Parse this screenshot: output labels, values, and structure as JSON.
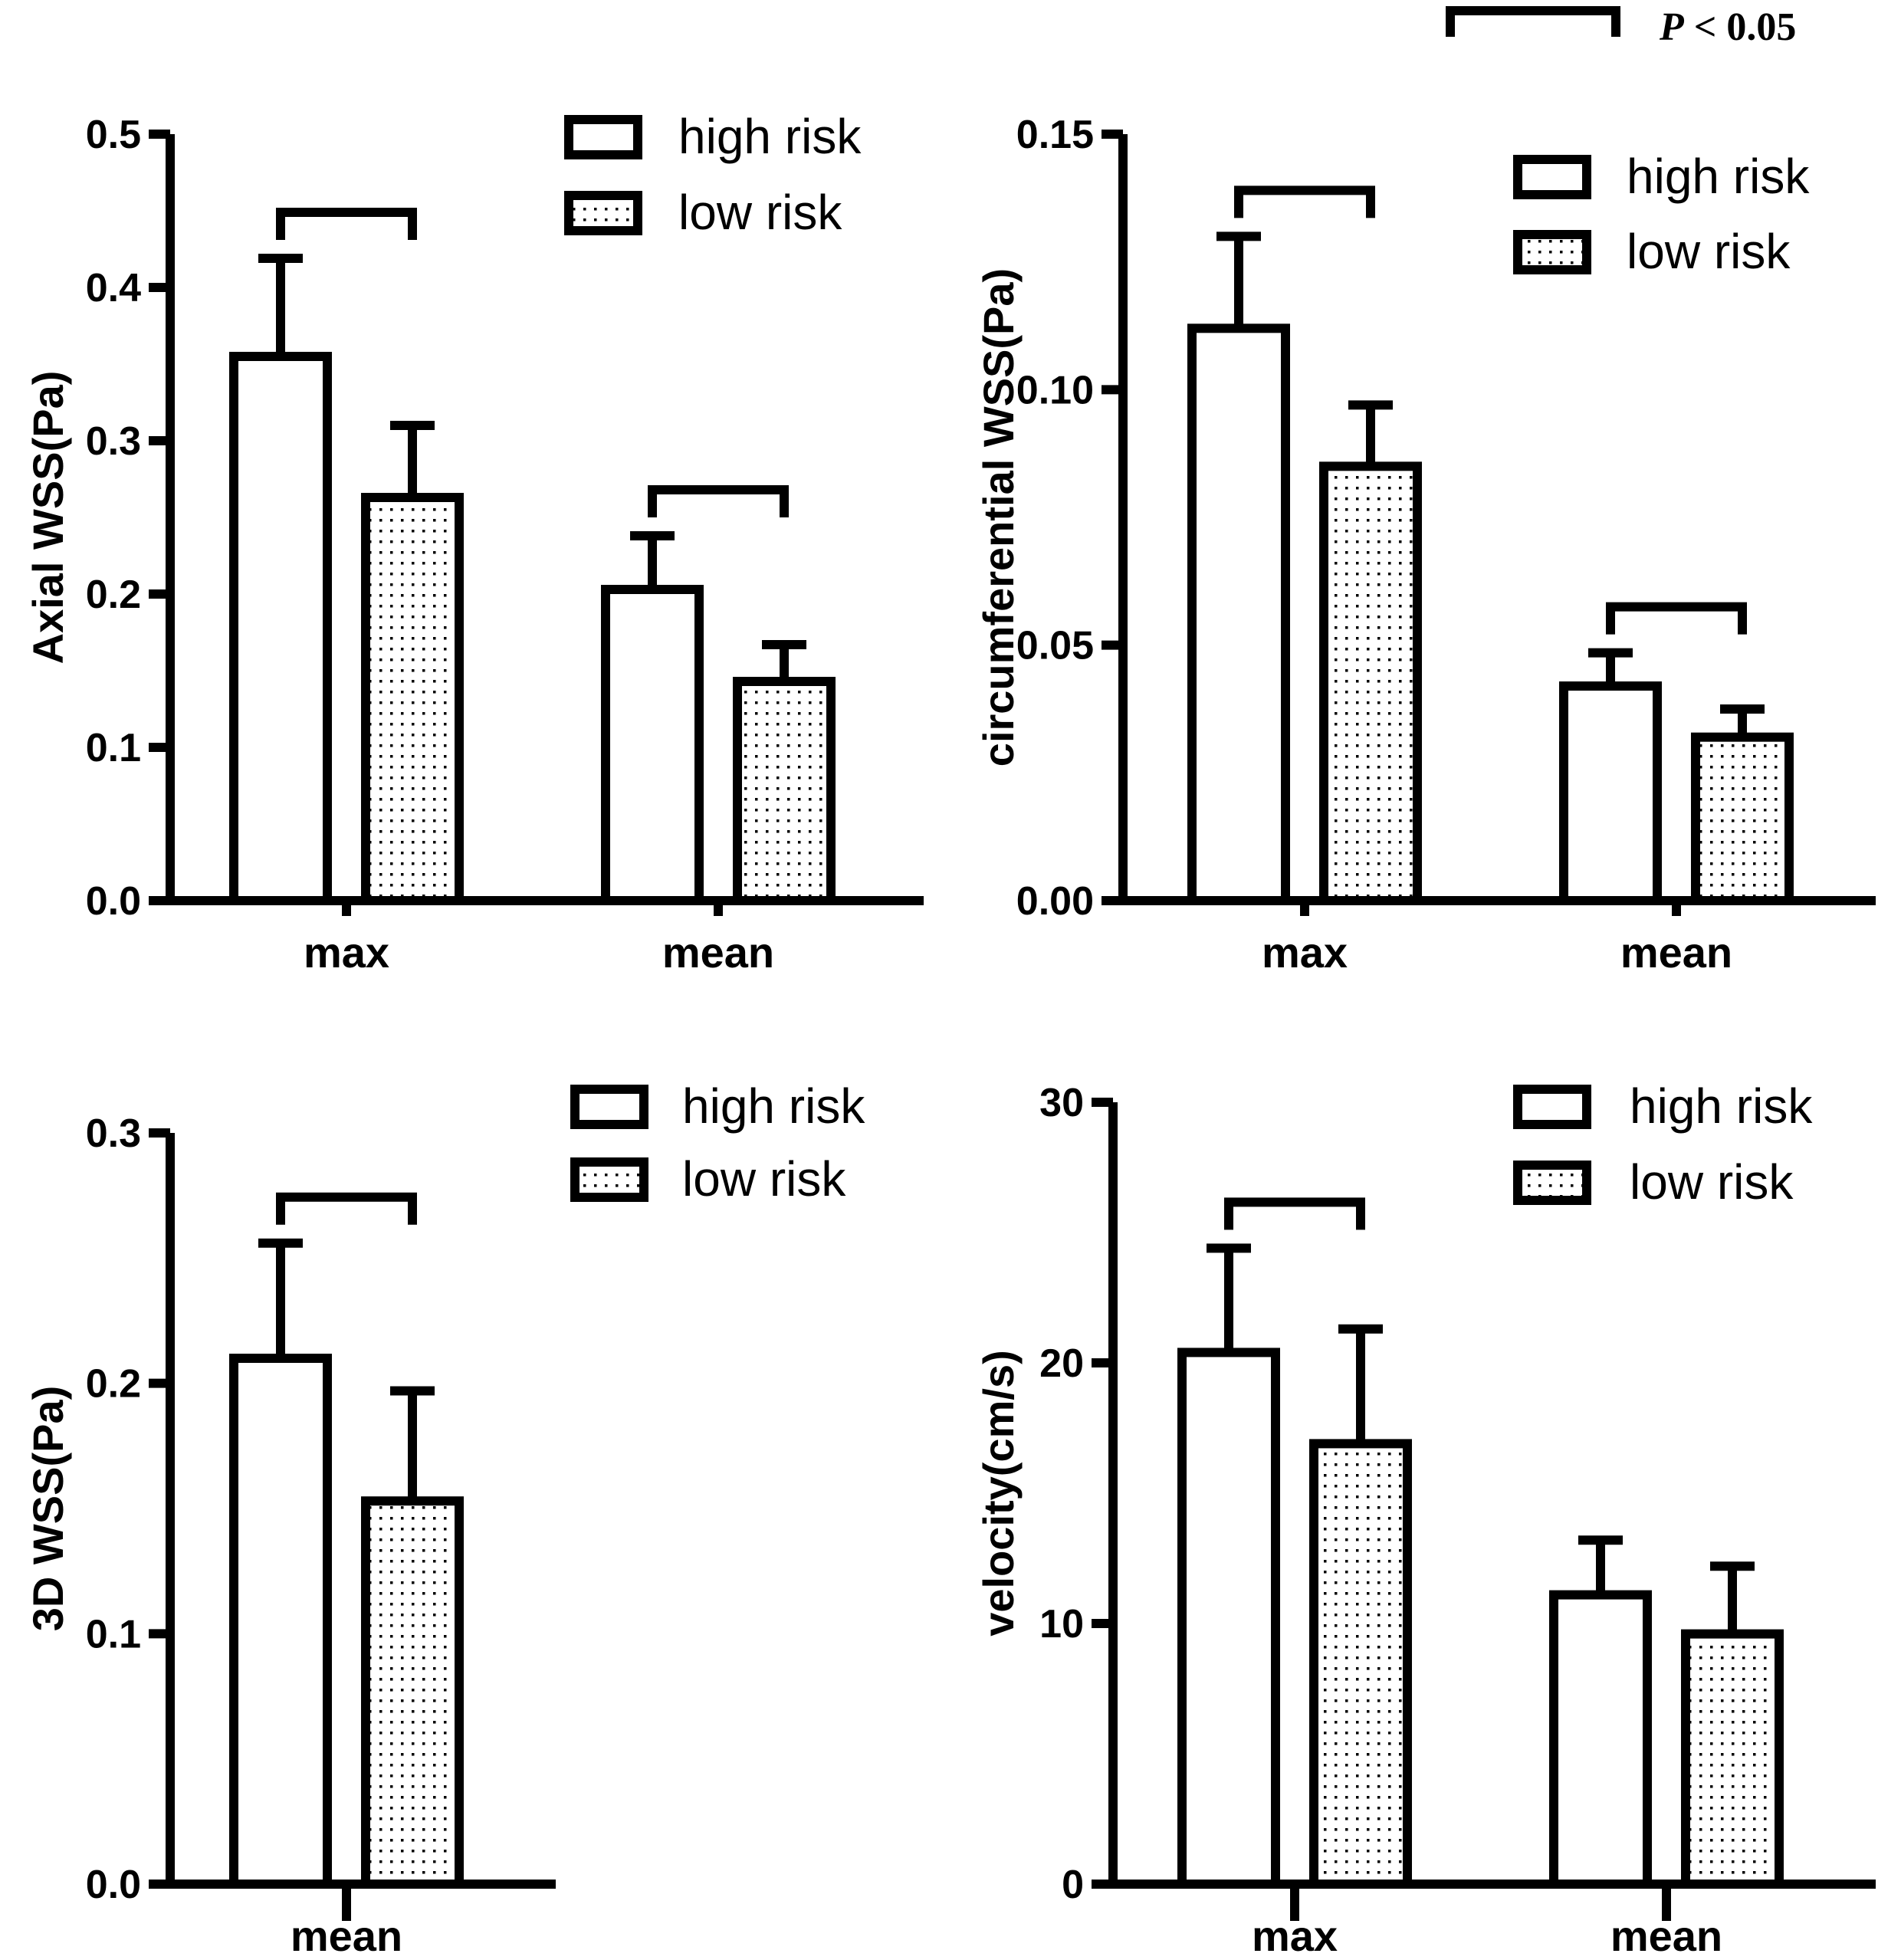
{
  "p_legend": {
    "p_italic": "P",
    "rest": " < 0.05"
  },
  "chart_data": [
    {
      "type": "bar",
      "title": "",
      "xlabel": "",
      "ylabel": "Axial WSS(Pa)",
      "ylim": [
        0,
        0.5
      ],
      "yticks": [
        "0.0",
        "0.1",
        "0.2",
        "0.3",
        "0.4",
        "0.5"
      ],
      "categories": [
        "max",
        "mean"
      ],
      "legend": [
        "high risk",
        "low risk"
      ],
      "legend_position": "top-right",
      "series": [
        {
          "name": "high risk",
          "values": [
            0.355,
            0.203
          ],
          "errors": [
            0.064,
            0.035
          ]
        },
        {
          "name": "low risk",
          "values": [
            0.263,
            0.143
          ],
          "errors": [
            0.047,
            0.024
          ]
        }
      ],
      "significance": [
        "max",
        "mean"
      ]
    },
    {
      "type": "bar",
      "title": "",
      "xlabel": "",
      "ylabel": "circumferential WSS(Pa)",
      "ylim": [
        0,
        0.15
      ],
      "yticks": [
        "0.00",
        "0.05",
        "0.10",
        "0.15"
      ],
      "categories": [
        "max",
        "mean"
      ],
      "legend": [
        "high risk",
        "low risk"
      ],
      "legend_position": "top-right",
      "series": [
        {
          "name": "high risk",
          "values": [
            0.112,
            0.042
          ],
          "errors": [
            0.018,
            0.0065
          ]
        },
        {
          "name": "low risk",
          "values": [
            0.085,
            0.032
          ],
          "errors": [
            0.012,
            0.0055
          ]
        }
      ],
      "significance": [
        "max",
        "mean"
      ]
    },
    {
      "type": "bar",
      "title": "",
      "xlabel": "",
      "ylabel": "3D WSS(Pa)",
      "ylim": [
        0,
        0.3
      ],
      "yticks": [
        "0.0",
        "0.1",
        "0.2",
        "0.3"
      ],
      "categories": [
        "mean"
      ],
      "legend": [
        "high risk",
        "low risk"
      ],
      "legend_position": "top-right",
      "series": [
        {
          "name": "high risk",
          "values": [
            0.21
          ],
          "errors": [
            0.046
          ]
        },
        {
          "name": "low risk",
          "values": [
            0.153
          ],
          "errors": [
            0.044
          ]
        }
      ],
      "significance": [
        "mean"
      ]
    },
    {
      "type": "bar",
      "title": "",
      "xlabel": "",
      "ylabel": "velocity(cm/s)",
      "ylim": [
        0,
        30
      ],
      "yticks": [
        "0",
        "10",
        "20",
        "30"
      ],
      "categories": [
        "max",
        "mean"
      ],
      "legend": [
        "high risk",
        "low risk"
      ],
      "legend_position": "top-right",
      "series": [
        {
          "name": "high risk",
          "values": [
            20.4,
            11.1
          ],
          "errors": [
            4.0,
            2.1
          ]
        },
        {
          "name": "low risk",
          "values": [
            16.9,
            9.6
          ],
          "errors": [
            4.4,
            2.6
          ]
        }
      ],
      "significance": [
        "max"
      ]
    }
  ]
}
